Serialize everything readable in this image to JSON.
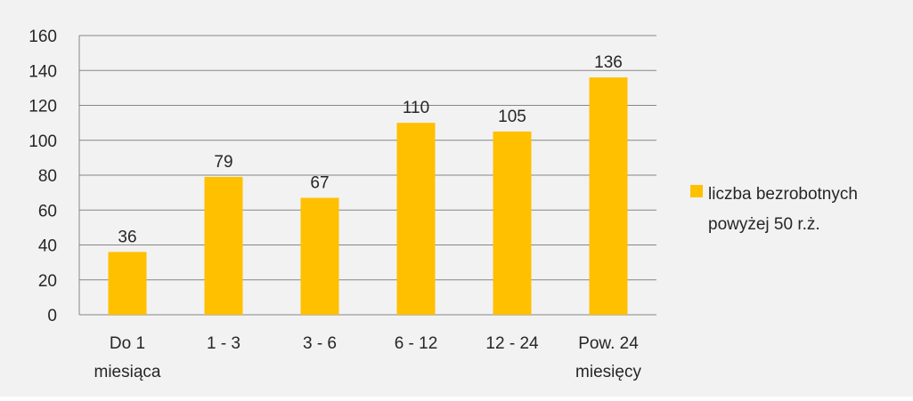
{
  "chart_data": {
    "type": "bar",
    "categories": [
      [
        "Do 1",
        "miesiąca"
      ],
      [
        "1 - 3"
      ],
      [
        "3 - 6"
      ],
      [
        "6 - 12"
      ],
      [
        "12 - 24"
      ],
      [
        "Pow. 24",
        "miesięcy"
      ]
    ],
    "series": [
      {
        "name": "liczba bezrobotnych powyżej 50 r.ż.",
        "values": [
          36,
          79,
          67,
          110,
          105,
          136
        ]
      }
    ],
    "ylim": [
      0,
      160
    ],
    "yticks": [
      0,
      20,
      40,
      60,
      80,
      100,
      120,
      140,
      160
    ],
    "grid": true,
    "legend_position": "right",
    "data_labels": true,
    "colors": {
      "bar": "#ffc000",
      "grid": "#868686",
      "axis": "#868686",
      "background": "#f2f2f2",
      "text": "#262626"
    }
  },
  "legend": {
    "line1": "liczba bezrobotnych",
    "line2": "powyżej 50 r.ż."
  }
}
